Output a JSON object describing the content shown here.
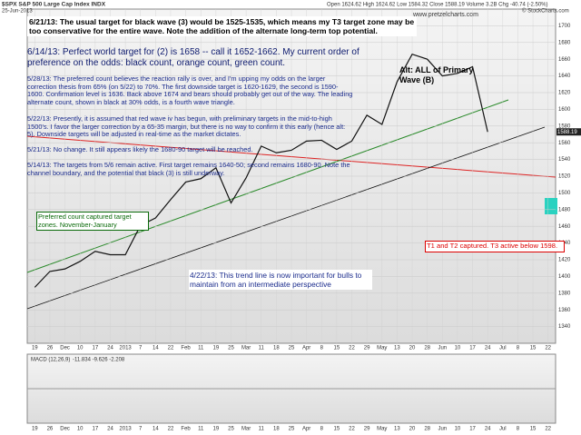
{
  "chart_data": {
    "type": "line",
    "header": "$SPX S&P 500 Large Cap Index  INDX",
    "date": "25-Jun-2013",
    "quote": "Open 1624.62  High 1624.62  Low 1584.32  Close 1588.19  Volume 3.2B  Chg -40.74 (-2.50%)",
    "source": "© StockCharts.com",
    "site": "www.pretzelcharts.com",
    "last_label": "1588.19",
    "categories": [
      "19",
      "26",
      "Dec",
      "10",
      "17",
      "24",
      "2013",
      "7",
      "14",
      "22",
      "Feb",
      "11",
      "19",
      "25",
      "Mar",
      "11",
      "18",
      "25",
      "Apr",
      "8",
      "15",
      "22",
      "29",
      "May",
      "13",
      "20",
      "28",
      "Jun",
      "10",
      "17",
      "24",
      "Jul",
      "8",
      "15",
      "22"
    ],
    "series": [
      {
        "name": "$SPX",
        "color": "#111111",
        "values": [
          1387,
          1406,
          1409,
          1418,
          1430,
          1426,
          1426,
          1461,
          1470,
          1492,
          1513,
          1517,
          1530,
          1488,
          1518,
          1556,
          1548,
          1551,
          1562,
          1563,
          1552,
          1562,
          1593,
          1582,
          1633,
          1666,
          1660,
          1640,
          1643,
          1651,
          1573,
          null,
          null,
          null,
          null
        ]
      }
    ],
    "ylim": [
      1320,
      1720
    ],
    "yticks": [
      1340,
      1360,
      1380,
      1400,
      1420,
      1440,
      1460,
      1480,
      1500,
      1520,
      1540,
      1560,
      1580,
      1600,
      1620,
      1640,
      1660,
      1680,
      1700
    ],
    "grid": true,
    "annotations": {
      "n621": "6/21/13:  The usual target for black wave (3) would be 1525-1535, which means my T3 target zone may be too conservative for the entire wave.  Note the addition of the alternate long-term top potential.",
      "n614": "6/14/13:  Perfect world target for (2) is 1658 -- call it 1652-1662.   My current order of preference on the odds: black count, orange count, green count.",
      "n528": "5/28/13:  The preferred count believes the reaction rally is over, and I'm upping my odds on the larger correction thesis from 65% (on 5/22) to 70%.  The first downside target is 1620-1629, the second is 1590-1600.  Confirmation level is 1636.  Back above 1674 and bears should probably get out of the way.  The leading alternate count, shown in black at 30% odds, is a fourth wave triangle.",
      "n522": "5/22/13:  Presently, it is assumed that red wave iv has begun, with preliminary targets in the mid-to-high 1500's.  I favor the larger correction by a 65-35 margin, but there is no way to confirm it this early (hence alt: 5).  Downside targets will be adjusted in real-time as the market dictates.",
      "n521": "5/21/13:  No change.  It still appears likely the 1680-90 target will be reached.",
      "n514": "5/14/13:  The targets from 5/6 remain active.  First target remains 1640-50; second remains 1680-90.  Note the channel boundary, and the potential that black (3) is still underway.",
      "alt": "Alt: ALL of Primary Wave (B)",
      "pref": "Preferred count captured target zones. November-January",
      "t1t2": "T1 and T2 captured.  T3 active below 1598.",
      "n422": "4/22/13: This trend line is now important for bulls to maintain from an intermediate perspective"
    },
    "macd": {
      "title": "MACD (12,26,9)",
      "values_text": "-11.834  -9.626  -2.208"
    }
  }
}
